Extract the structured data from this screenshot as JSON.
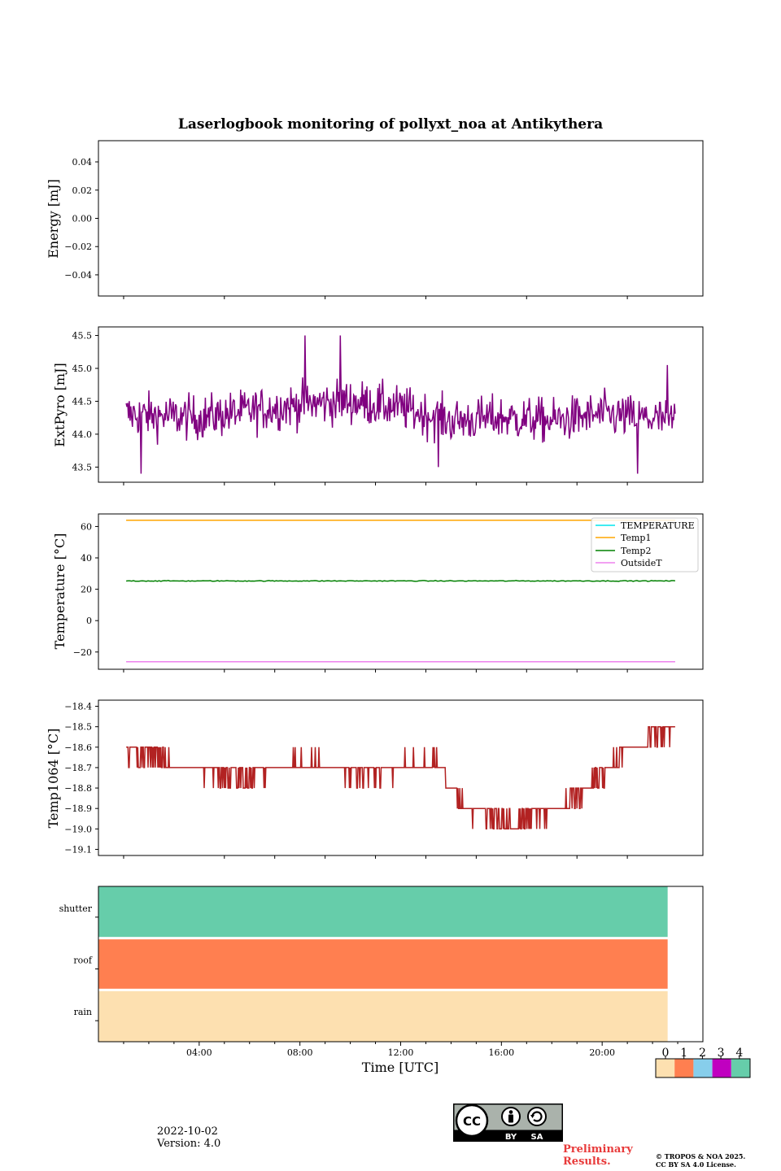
{
  "figure": {
    "title": "Laserlogbook monitoring of pollyxt_noa at Antikythera",
    "date": "2022-10-02",
    "version": "Version: 4.0",
    "preliminary": "Preliminary\nResults.",
    "copyright_line1": "© TROPOS & NOA 2025.",
    "copyright_line2": "CC BY SA 4.0 License.",
    "license_badge": {
      "cc": "CC",
      "by": "BY",
      "sa": "SA"
    }
  },
  "colors": {
    "extpyro": "#800080",
    "temperature": "#00e5ee",
    "temp1": "#ffa500",
    "temp2": "#008000",
    "outsideT": "#ee82ee",
    "temp1064": "#b22222",
    "status_0": "#fde0b0",
    "status_1": "#ff7f50",
    "status_2": "#87ceeb",
    "status_3": "#c000c0",
    "status_4": "#66cdaa"
  },
  "chart_data": [
    {
      "type": "line",
      "ylabel": "Energy [mJ]",
      "ylim": [
        -0.055,
        0.055
      ],
      "yticks": [
        0.04,
        0.02,
        0.0,
        -0.02,
        -0.04
      ],
      "ytick_labels": [
        "0.04",
        "0.02",
        "0.00",
        "−0.02",
        "−0.04"
      ],
      "xlim": [
        0,
        24
      ],
      "series": []
    },
    {
      "type": "line",
      "ylabel": "ExtPyro [mJ]",
      "ylim": [
        43.27,
        45.63
      ],
      "yticks": [
        43.5,
        44.0,
        44.5,
        45.0,
        45.5
      ],
      "ytick_labels": [
        "43.5",
        "44.0",
        "44.5",
        "45.0",
        "45.5"
      ],
      "xlim": [
        0,
        24
      ],
      "series": [
        {
          "x_range": [
            1.1,
            22.9
          ],
          "noise_amplitude": 0.33,
          "trend": [
            [
              1.1,
              44.3
            ],
            [
              4,
              44.25
            ],
            [
              8,
              44.45
            ],
            [
              10,
              44.5
            ],
            [
              12,
              44.4
            ],
            [
              14,
              44.2
            ],
            [
              16,
              44.25
            ],
            [
              18,
              44.2
            ],
            [
              20,
              44.3
            ],
            [
              22.9,
              44.2
            ]
          ],
          "spikes": [
            [
              1.7,
              43.4
            ],
            [
              8.2,
              45.5
            ],
            [
              9.6,
              45.5
            ],
            [
              13.5,
              43.5
            ],
            [
              21.4,
              43.4
            ],
            [
              22.6,
              45.05
            ]
          ]
        }
      ]
    },
    {
      "type": "line",
      "ylabel": "Temperature [°C]",
      "ylim": [
        -31,
        68
      ],
      "yticks": [
        60,
        40,
        20,
        0,
        -20
      ],
      "ytick_labels": [
        "60",
        "40",
        "20",
        "0",
        "−20"
      ],
      "xlim": [
        0,
        24
      ],
      "legend_position": "top-right",
      "series": [
        {
          "name": "TEMPERATURE",
          "x": [
            1.1,
            22.9
          ],
          "y": [
            null,
            null
          ]
        },
        {
          "name": "Temp1",
          "x": [
            1.1,
            22.9
          ],
          "y": [
            64,
            64
          ]
        },
        {
          "name": "Temp2",
          "x": [
            1.1,
            22.9
          ],
          "y": [
            25.3,
            25.3
          ],
          "noise_amplitude": 0.5
        },
        {
          "name": "OutsideT",
          "x": [
            1.1,
            22.9
          ],
          "y": [
            -26.2,
            -26.2
          ]
        }
      ]
    },
    {
      "type": "line",
      "ylabel": "Temp1064 [°C]",
      "ylim": [
        -19.13,
        -18.37
      ],
      "yticks": [
        -18.4,
        -18.5,
        -18.6,
        -18.7,
        -18.8,
        -18.9,
        -19.0,
        -19.1
      ],
      "ytick_labels": [
        "−18.4",
        "−18.5",
        "−18.6",
        "−18.7",
        "−18.8",
        "−18.9",
        "−19.0",
        "−19.1"
      ],
      "xlim": [
        0,
        24
      ],
      "series": [
        {
          "quantization": 0.1,
          "x_range": [
            1.1,
            22.9
          ],
          "trend": [
            [
              1.1,
              -18.62
            ],
            [
              2.5,
              -18.65
            ],
            [
              4,
              -18.72
            ],
            [
              6,
              -18.75
            ],
            [
              7.5,
              -18.68
            ],
            [
              9,
              -18.68
            ],
            [
              10,
              -18.73
            ],
            [
              12,
              -18.7
            ],
            [
              13.5,
              -18.66
            ],
            [
              14,
              -18.82
            ],
            [
              15,
              -18.92
            ],
            [
              16,
              -18.97
            ],
            [
              17.5,
              -18.93
            ],
            [
              19,
              -18.85
            ],
            [
              20,
              -18.73
            ],
            [
              21,
              -18.62
            ],
            [
              22,
              -18.55
            ],
            [
              22.9,
              -18.52
            ]
          ]
        }
      ]
    },
    {
      "type": "heatmap",
      "rows": [
        "shutter",
        "roof",
        "rain"
      ],
      "status_per_row": [
        4,
        1,
        0
      ],
      "x_range": [
        0,
        22.6
      ],
      "xlim": [
        0,
        24
      ],
      "xlabel": "Time [UTC]",
      "xticks": [
        4,
        8,
        12,
        16,
        20
      ],
      "xtick_labels": [
        "04:00",
        "08:00",
        "12:00",
        "16:00",
        "20:00"
      ],
      "colorbar_ticks": [
        "0",
        "1",
        "2",
        "3",
        "4"
      ]
    }
  ]
}
